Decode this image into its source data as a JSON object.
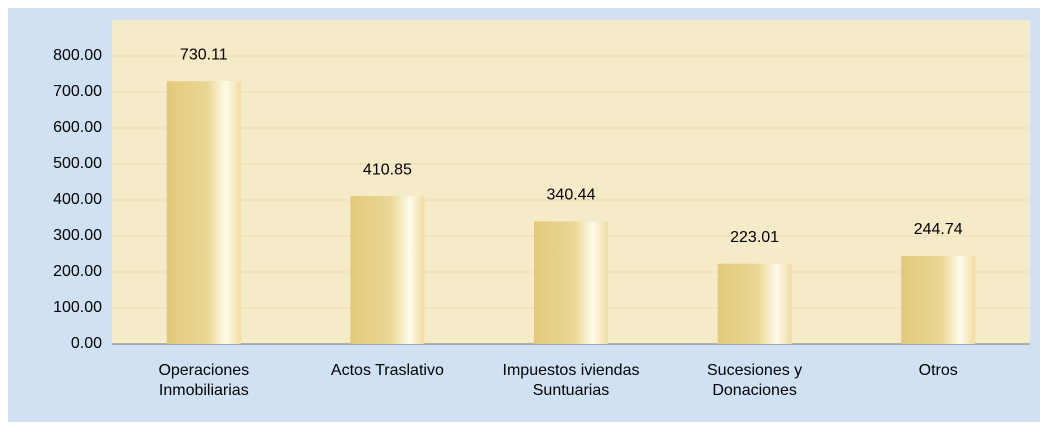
{
  "chart_data": {
    "type": "bar",
    "categories": [
      "Operaciones Inmobiliarias",
      "Actos Traslativo",
      "Impuestos iviendas Suntuarias",
      "Sucesiones y Donaciones",
      "Otros"
    ],
    "values": [
      730.11,
      410.85,
      340.44,
      223.01,
      244.74
    ],
    "color": "#e2c97a",
    "ylim": [
      0,
      900
    ],
    "yticks": [
      {
        "value": 0,
        "label": "0.00"
      },
      {
        "value": 100,
        "label": "100.00"
      },
      {
        "value": 200,
        "label": "200.00"
      },
      {
        "value": 300,
        "label": "300.00"
      },
      {
        "value": 400,
        "label": "400.00"
      },
      {
        "value": 500,
        "label": "500.00"
      },
      {
        "value": 600,
        "label": "600.00"
      },
      {
        "value": 700,
        "label": "700.00"
      },
      {
        "value": 800,
        "label": "800.00"
      }
    ],
    "grid": true
  }
}
